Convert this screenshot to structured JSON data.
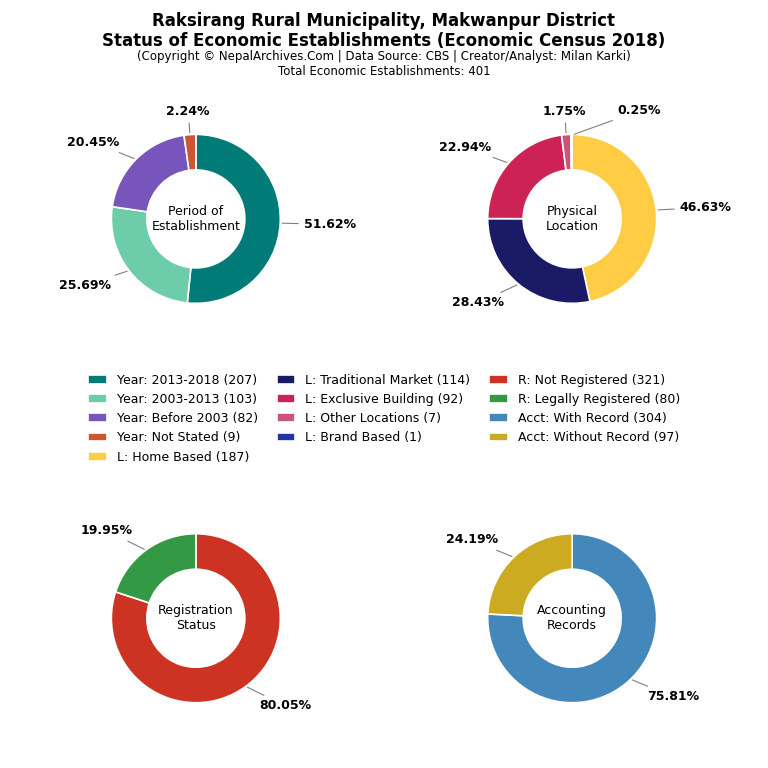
{
  "title": "Raksirang Rural Municipality, Makwanpur District\nStatus of Economic Establishments (Economic Census 2018)",
  "subtitle": "(Copyright © NepalArchives.Com | Data Source: CBS | Creator/Analyst: Milan Karki)\nTotal Economic Establishments: 401",
  "chart_data": [
    {
      "type": "pie",
      "title": "Period of\nEstablishment",
      "categories": [
        "Year: 2013-2018 (207)",
        "Year: 2003-2013 (103)",
        "Year: Before 2003 (82)",
        "Year: Not Stated (9)"
      ],
      "values": [
        51.62,
        25.69,
        20.45,
        2.24
      ],
      "value_labels": [
        "51.62%",
        "25.69%",
        "20.45%",
        "2.24%"
      ],
      "colors": [
        "#007b77",
        "#6dccaa",
        "#7755bb",
        "#cc5533"
      ],
      "data_labels": true
    },
    {
      "type": "pie",
      "title": "Physical\nLocation",
      "categories": [
        "L: Home Based (187)",
        "L: Traditional Market (114)",
        "L: Exclusive Building (92)",
        "L: Other Locations (7)",
        "L: Brand Based (1)"
      ],
      "values": [
        46.63,
        28.43,
        22.94,
        1.75,
        0.25
      ],
      "value_labels": [
        "46.63%",
        "28.43%",
        "22.94%",
        "1.75%",
        "0.25%"
      ],
      "colors": [
        "#ffcc44",
        "#1a1a66",
        "#cc2255",
        "#cc5577",
        "#2233aa"
      ],
      "data_labels": true
    },
    {
      "type": "pie",
      "title": "Registration\nStatus",
      "categories": [
        "R: Not Registered (321)",
        "R: Legally Registered (80)"
      ],
      "values": [
        80.05,
        19.95
      ],
      "value_labels": [
        "80.05%",
        "19.95%"
      ],
      "colors": [
        "#cc3322",
        "#339944"
      ],
      "data_labels": true
    },
    {
      "type": "pie",
      "title": "Accounting\nRecords",
      "categories": [
        "Acct: With Record (304)",
        "Acct: Without Record (97)"
      ],
      "values": [
        75.81,
        24.19
      ],
      "value_labels": [
        "75.81%",
        "24.19%"
      ],
      "colors": [
        "#4488bb",
        "#ccaa22"
      ],
      "data_labels": true
    }
  ]
}
